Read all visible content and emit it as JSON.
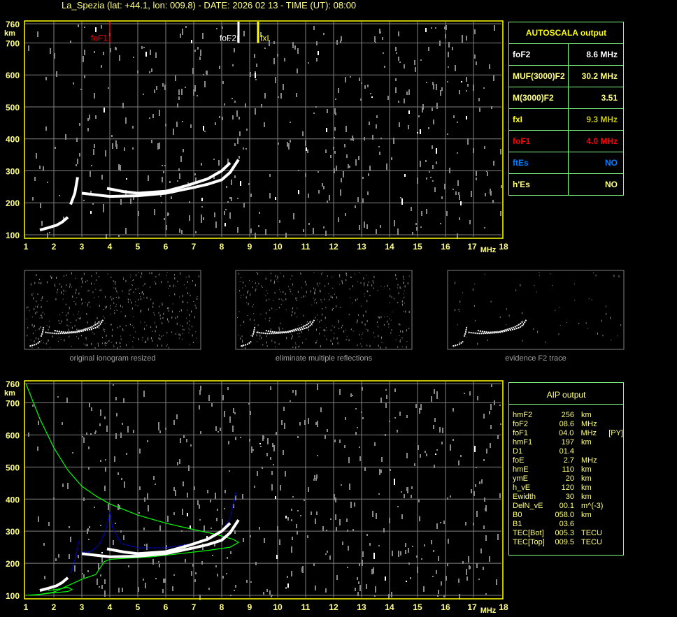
{
  "header": {
    "title": "La_Spezia (lat: +44.1, lon: 009.8) - DATE: 2026 02 13 - TIME (UT): 08:00"
  },
  "colors": {
    "axis": "#ffff00",
    "grid": "#808080",
    "panel_border": "#80ff80",
    "trace": "#ffffff",
    "fof1_marker": "#ff0000",
    "fxi_marker": "#ffff00",
    "aip_green": "#00ff00",
    "aip_blue": "#0000ff"
  },
  "chart_data": [
    {
      "type": "scatter",
      "title": "",
      "xlabel": "MHz",
      "ylabel": "km",
      "xlim": [
        1,
        18
      ],
      "ylim": [
        100,
        760
      ],
      "x_ticks": [
        "1",
        "2",
        "3",
        "4",
        "5",
        "6",
        "7",
        "8",
        "9",
        "10",
        "11",
        "12",
        "13",
        "14",
        "15",
        "16",
        "17",
        "18"
      ],
      "y_ticks": [
        "100",
        "200",
        "300",
        "400",
        "500",
        "600",
        "700",
        "760"
      ],
      "grid": true,
      "markers": [
        {
          "label": "foF1",
          "freq": 4.0,
          "color": "#ff0000"
        },
        {
          "label": "foF2",
          "freq": 8.6,
          "color": "#ffffff"
        },
        {
          "label": "fxI",
          "freq": 9.3,
          "color": "#ffff00"
        }
      ],
      "series": [
        {
          "points": [
            [
              1.5,
              115
            ],
            [
              1.8,
              122
            ],
            [
              2.1,
              130
            ],
            [
              2.3,
              140
            ],
            [
              2.5,
              155
            ]
          ]
        },
        {
          "points": [
            [
              2.6,
              195
            ],
            [
              2.75,
              230
            ],
            [
              2.85,
              280
            ]
          ]
        },
        {
          "points": [
            [
              3.0,
              230
            ],
            [
              3.5,
              225
            ],
            [
              4.0,
              220
            ],
            [
              5.0,
              222
            ],
            [
              6.0,
              230
            ],
            [
              7.0,
              248
            ],
            [
              7.5,
              258
            ],
            [
              8.0,
              272
            ],
            [
              8.3,
              295
            ],
            [
              8.6,
              335
            ]
          ]
        },
        {
          "points": [
            [
              3.9,
              245
            ],
            [
              4.5,
              235
            ],
            [
              5.0,
              230
            ],
            [
              6.0,
              236
            ],
            [
              6.8,
              255
            ],
            [
              7.5,
              275
            ],
            [
              8.0,
              300
            ],
            [
              8.3,
              325
            ]
          ]
        }
      ]
    },
    {
      "type": "line",
      "title": "",
      "xlabel": "MHz",
      "ylabel": "km",
      "xlim": [
        1,
        18
      ],
      "ylim": [
        100,
        760
      ],
      "x_ticks": [
        "1",
        "2",
        "3",
        "4",
        "5",
        "6",
        "7",
        "8",
        "9",
        "10",
        "11",
        "12",
        "13",
        "14",
        "15",
        "16",
        "17",
        "18"
      ],
      "y_ticks": [
        "100",
        "200",
        "300",
        "400",
        "500",
        "600",
        "700",
        "760"
      ],
      "grid": true,
      "series": [
        {
          "color": "#00ff00",
          "points": [
            [
              1.0,
              760
            ],
            [
              1.5,
              650
            ],
            [
              2.0,
              560
            ],
            [
              2.5,
              490
            ],
            [
              3.0,
              440
            ],
            [
              3.5,
              410
            ],
            [
              4.0,
              385
            ],
            [
              5.0,
              350
            ],
            [
              6.0,
              325
            ],
            [
              7.0,
              305
            ],
            [
              7.8,
              290
            ],
            [
              8.4,
              275
            ],
            [
              8.6,
              265
            ],
            [
              8.3,
              250
            ],
            [
              7.5,
              240
            ],
            [
              6.5,
              230
            ],
            [
              5.5,
              220
            ],
            [
              4.5,
              215
            ],
            [
              4.0,
              212
            ],
            [
              3.8,
              205
            ],
            [
              3.5,
              165
            ],
            [
              3.0,
              150
            ],
            [
              2.5,
              130
            ],
            [
              2.0,
              110
            ],
            [
              1.5,
              103
            ],
            [
              1.0,
              100
            ]
          ]
        },
        {
          "color": "#00ff00",
          "points": [
            [
              1.2,
              100
            ],
            [
              2.0,
              108
            ],
            [
              2.5,
              112
            ],
            [
              2.65,
              118
            ],
            [
              2.5,
              125
            ],
            [
              2.2,
              120
            ],
            [
              1.8,
              115
            ]
          ]
        },
        {
          "color": "#0000ff",
          "points": [
            [
              3.0,
              235
            ],
            [
              3.3,
              235
            ],
            [
              3.6,
              255
            ],
            [
              3.85,
              300
            ],
            [
              4.0,
              360
            ],
            [
              4.1,
              310
            ],
            [
              4.4,
              262
            ],
            [
              5.0,
              248
            ],
            [
              6.0,
              248
            ],
            [
              7.0,
              262
            ],
            [
              7.6,
              280
            ],
            [
              8.0,
              300
            ],
            [
              8.3,
              340
            ],
            [
              8.5,
              420
            ]
          ]
        },
        {
          "color": "#0000ff",
          "points": [
            [
              2.6,
              170
            ],
            [
              2.75,
              210
            ],
            [
              2.9,
              270
            ]
          ]
        },
        {
          "color": "#ffffff",
          "points": [
            [
              3.0,
              230
            ],
            [
              3.5,
              225
            ],
            [
              4.0,
              220
            ],
            [
              5.0,
              222
            ],
            [
              6.0,
              230
            ],
            [
              7.0,
              248
            ],
            [
              7.5,
              258
            ],
            [
              8.0,
              272
            ],
            [
              8.3,
              295
            ],
            [
              8.6,
              335
            ]
          ]
        },
        {
          "color": "#ffffff",
          "points": [
            [
              3.9,
              245
            ],
            [
              4.5,
              235
            ],
            [
              5.0,
              230
            ],
            [
              6.0,
              236
            ],
            [
              6.8,
              255
            ],
            [
              7.5,
              275
            ],
            [
              8.0,
              300
            ],
            [
              8.3,
              325
            ]
          ]
        },
        {
          "color": "#ffffff",
          "points": [
            [
              1.5,
              115
            ],
            [
              1.8,
              122
            ],
            [
              2.1,
              130
            ],
            [
              2.3,
              140
            ],
            [
              2.5,
              155
            ]
          ]
        }
      ]
    }
  ],
  "autoscala": {
    "title": "AUTOSCALA output",
    "rows": [
      {
        "key": "foF2",
        "value": "8.6 MHz",
        "color": "#ffffff",
        "vcolor": "#ffffff"
      },
      {
        "key": "MUF(3000)F2",
        "value": "30.2 MHz",
        "color": "#ffff80",
        "vcolor": "#ffff80"
      },
      {
        "key": "M(3000)F2",
        "value": "3.51",
        "color": "#ffff80",
        "vcolor": "#ffff80"
      },
      {
        "key": "fxI",
        "value": "9.3 MHz",
        "color": "#ffff00",
        "vcolor": "#c8c800"
      },
      {
        "key": "foF1",
        "value": "4.0 MHz",
        "color": "#ff0000",
        "vcolor": "#ff0000"
      },
      {
        "key": "ftEs",
        "value": "NO",
        "color": "#0080ff",
        "vcolor": "#0080ff"
      },
      {
        "key": "h'Es",
        "value": "NO",
        "color": "#ffff80",
        "vcolor": "#ffff80"
      }
    ]
  },
  "aip": {
    "title": "AIP output",
    "rows": [
      {
        "key": "hmF2",
        "value": "256",
        "unit": "km",
        "extra": ""
      },
      {
        "key": "foF2",
        "value": "08.6",
        "unit": "MHz",
        "extra": ""
      },
      {
        "key": "foF1",
        "value": "04.0",
        "unit": "MHz",
        "extra": "[PY]"
      },
      {
        "key": "hmF1",
        "value": "197",
        "unit": "km",
        "extra": ""
      },
      {
        "key": "D1",
        "value": "01.4",
        "unit": "",
        "extra": ""
      },
      {
        "key": "foE",
        "value": "2.7",
        "unit": "MHz",
        "extra": ""
      },
      {
        "key": "hmE",
        "value": "110",
        "unit": "km",
        "extra": ""
      },
      {
        "key": "ymE",
        "value": "20",
        "unit": "km",
        "extra": ""
      },
      {
        "key": "h_vE",
        "value": "120",
        "unit": "km",
        "extra": ""
      },
      {
        "key": "Ewidth",
        "value": "30",
        "unit": "km",
        "extra": ""
      },
      {
        "key": "DelN_vE",
        "value": "00.1",
        "unit": "m^(-3)",
        "extra": ""
      },
      {
        "key": "B0",
        "value": "058.0",
        "unit": "km",
        "extra": ""
      },
      {
        "key": "B1",
        "value": "03.6",
        "unit": "",
        "extra": ""
      },
      {
        "key": "TEC[Bot]",
        "value": "005.3",
        "unit": "TECU",
        "extra": ""
      },
      {
        "key": "TEC[Top]",
        "value": "009.5",
        "unit": "TECU",
        "extra": ""
      }
    ]
  },
  "thumbnails": [
    {
      "label": "original ionogram resized"
    },
    {
      "label": "eliminate multiple reflections"
    },
    {
      "label": "evidence F2 trace"
    }
  ]
}
